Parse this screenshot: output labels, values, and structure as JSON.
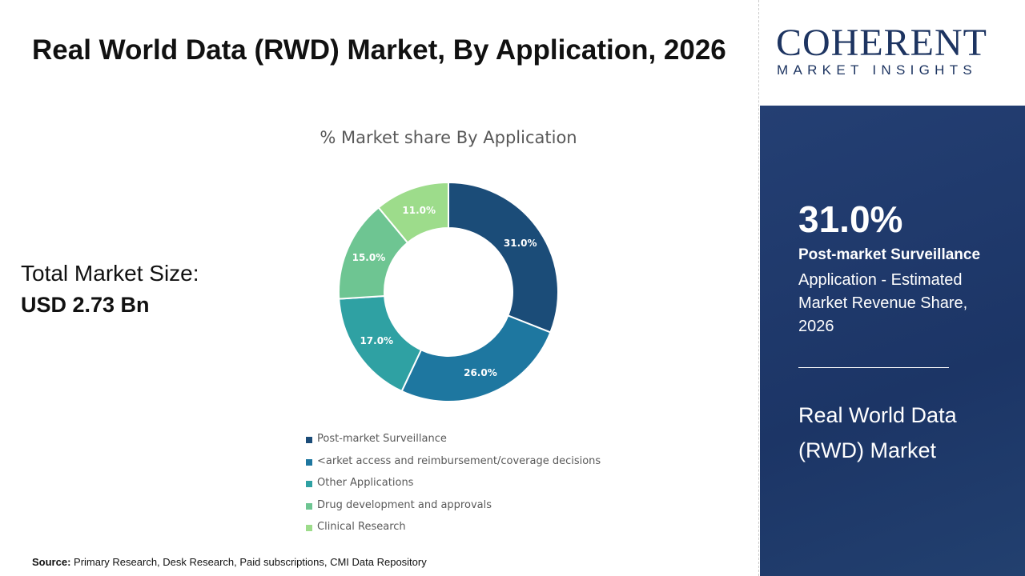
{
  "title": "Real World Data (RWD) Market, By Application, 2026",
  "total": {
    "label": "Total Market Size:",
    "value": "USD 2.73 Bn"
  },
  "source": {
    "label": "Source:",
    "text": " Primary Research, Desk Research, Paid subscriptions, CMI Data Repository"
  },
  "logo": {
    "brand": "COHERENT",
    "tagline": "MARKET INSIGHTS"
  },
  "panel": {
    "percent": "31.0%",
    "segment": "Post-market Surveillance",
    "description": "Application - Estimated Market Revenue Share, 2026",
    "market": "Real World Data (RWD) Market"
  },
  "chart_data": {
    "type": "pie",
    "donut": true,
    "title": "% Market share By Application",
    "categories": [
      "Post-market Surveillance",
      "<arket access and reimbursement/coverage decisions",
      "Other Applications",
      "Drug development and approvals",
      "Clinical Research"
    ],
    "values": [
      31.0,
      26.0,
      17.0,
      15.0,
      11.0
    ],
    "labels": [
      "31.0%",
      "26.0%",
      "17.0%",
      "15.0%",
      "11.0%"
    ],
    "colors": [
      "#1b4c78",
      "#1e77a0",
      "#2fa1a3",
      "#6ec592",
      "#9ddc8b"
    ],
    "legend": "bottom"
  }
}
